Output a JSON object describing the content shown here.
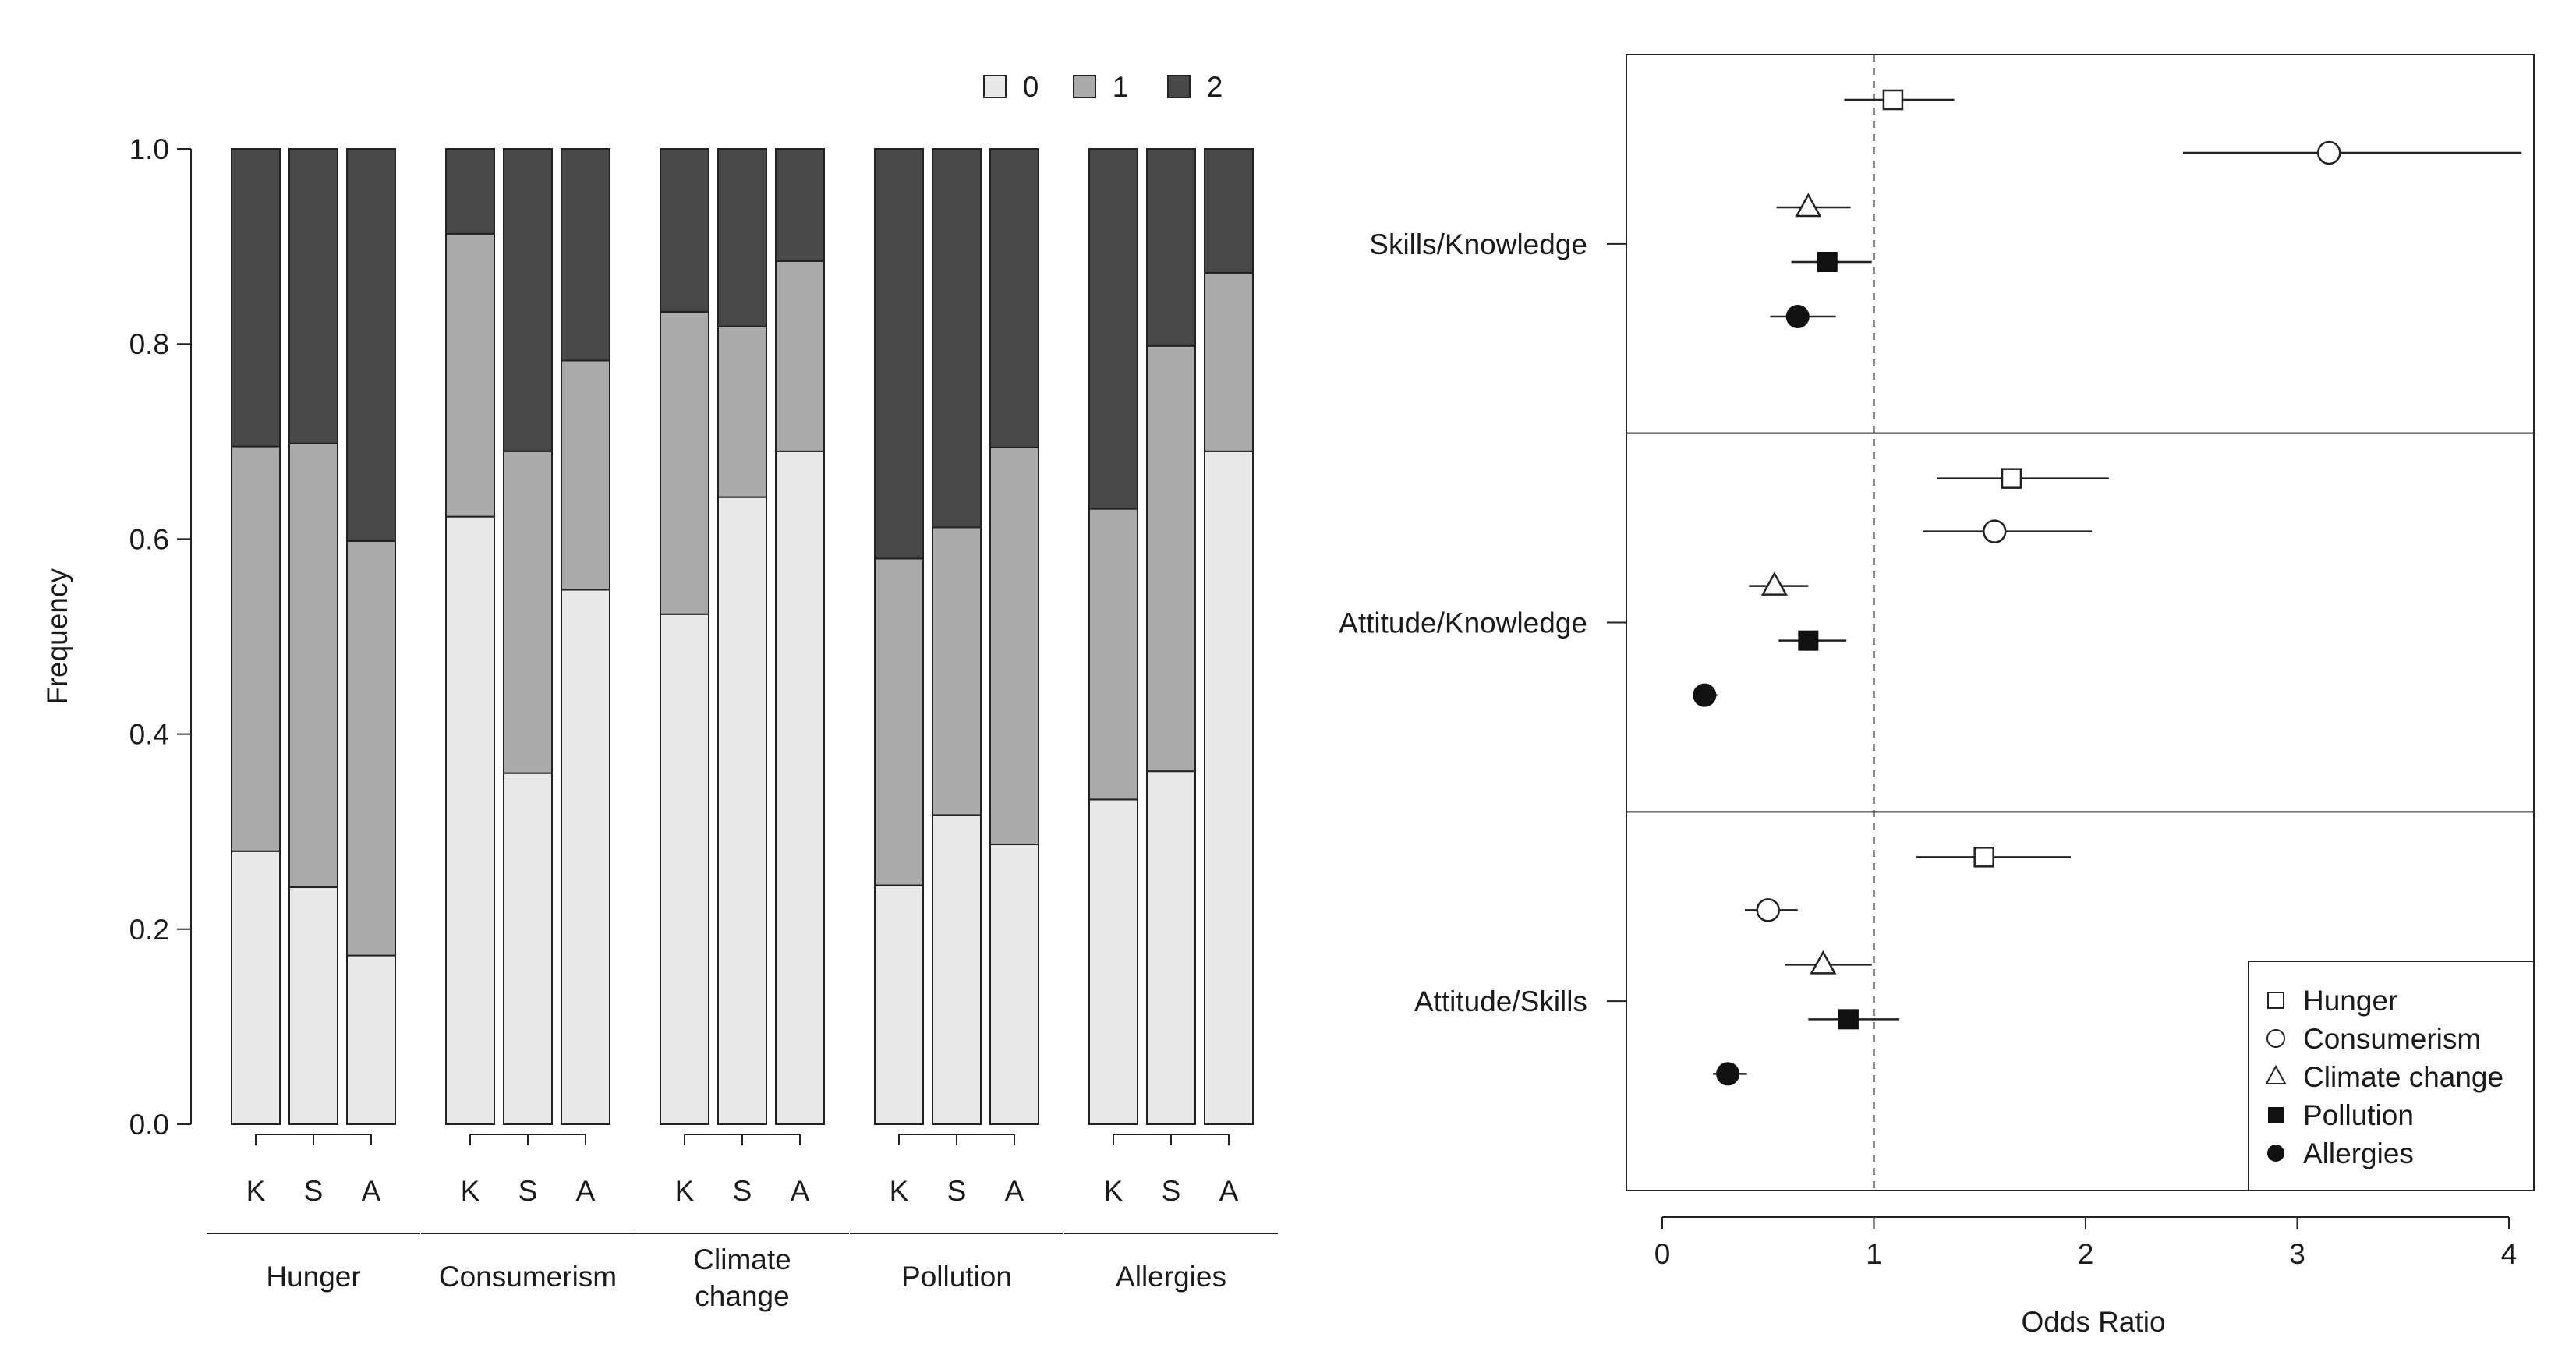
{
  "chart_data": [
    {
      "type": "bar",
      "stacked": true,
      "ylabel": "Frequency",
      "ylim": [
        0,
        1
      ],
      "yticks": [
        "0.0",
        "0.2",
        "0.4",
        "0.6",
        "0.8",
        "1.0"
      ],
      "legend": {
        "placement": "top-right",
        "entries": [
          "0",
          "1",
          "2"
        ]
      },
      "colors": {
        "0": "#e8e8e8",
        "1": "#ababab",
        "2": "#484848"
      },
      "groups": [
        {
          "name": "Hunger",
          "bars": [
            {
              "label": "K",
              "v0": 0.28,
              "v1": 0.415,
              "v2": 0.305
            },
            {
              "label": "S",
              "v0": 0.243,
              "v1": 0.455,
              "v2": 0.302
            },
            {
              "label": "A",
              "v0": 0.173,
              "v1": 0.425,
              "v2": 0.402
            }
          ]
        },
        {
          "name": "Consumerism",
          "bars": [
            {
              "label": "K",
              "v0": 0.623,
              "v1": 0.29,
              "v2": 0.087
            },
            {
              "label": "S",
              "v0": 0.36,
              "v1": 0.33,
              "v2": 0.31
            },
            {
              "label": "A",
              "v0": 0.548,
              "v1": 0.235,
              "v2": 0.217
            }
          ]
        },
        {
          "name": "Climate change",
          "bars": [
            {
              "label": "K",
              "v0": 0.523,
              "v1": 0.31,
              "v2": 0.167
            },
            {
              "label": "S",
              "v0": 0.643,
              "v1": 0.175,
              "v2": 0.182
            },
            {
              "label": "A",
              "v0": 0.69,
              "v1": 0.195,
              "v2": 0.115
            }
          ]
        },
        {
          "name": "Pollution",
          "bars": [
            {
              "label": "K",
              "v0": 0.245,
              "v1": 0.335,
              "v2": 0.42
            },
            {
              "label": "S",
              "v0": 0.317,
              "v1": 0.295,
              "v2": 0.388
            },
            {
              "label": "A",
              "v0": 0.287,
              "v1": 0.407,
              "v2": 0.306
            }
          ]
        },
        {
          "name": "Allergies",
          "bars": [
            {
              "label": "K",
              "v0": 0.333,
              "v1": 0.298,
              "v2": 0.369
            },
            {
              "label": "S",
              "v0": 0.362,
              "v1": 0.436,
              "v2": 0.202
            },
            {
              "label": "A",
              "v0": 0.69,
              "v1": 0.183,
              "v2": 0.127
            }
          ]
        }
      ]
    },
    {
      "type": "scatter",
      "subtype": "forest",
      "xlabel": "Odds Ratio",
      "xlim": [
        0,
        4
      ],
      "xticks": [
        0,
        1,
        2,
        3,
        4
      ],
      "reference_line": 1,
      "legend": {
        "placement": "bottom-right"
      },
      "series": [
        {
          "name": "Hunger",
          "marker": "open-square"
        },
        {
          "name": "Consumerism",
          "marker": "open-circle"
        },
        {
          "name": "Climate change",
          "marker": "open-triangle"
        },
        {
          "name": "Pollution",
          "marker": "filled-square"
        },
        {
          "name": "Allergies",
          "marker": "filled-circle"
        }
      ],
      "panels": [
        {
          "label": "Skills/Knowledge",
          "points": [
            {
              "series": "Hunger",
              "or": 1.09,
              "lo": 0.86,
              "hi": 1.38
            },
            {
              "series": "Consumerism",
              "or": 3.15,
              "lo": 2.46,
              "hi": 4.06
            },
            {
              "series": "Climate change",
              "or": 0.69,
              "lo": 0.54,
              "hi": 0.89
            },
            {
              "series": "Pollution",
              "or": 0.78,
              "lo": 0.61,
              "hi": 0.99
            },
            {
              "series": "Allergies",
              "or": 0.64,
              "lo": 0.51,
              "hi": 0.82
            }
          ]
        },
        {
          "label": "Attitude/Knowledge",
          "points": [
            {
              "series": "Hunger",
              "or": 1.65,
              "lo": 1.3,
              "hi": 2.11
            },
            {
              "series": "Consumerism",
              "or": 1.57,
              "lo": 1.23,
              "hi": 2.03
            },
            {
              "series": "Climate change",
              "or": 0.53,
              "lo": 0.41,
              "hi": 0.69
            },
            {
              "series": "Pollution",
              "or": 0.69,
              "lo": 0.55,
              "hi": 0.87
            },
            {
              "series": "Allergies",
              "or": 0.2,
              "lo": 0.16,
              "hi": 0.26
            }
          ]
        },
        {
          "label": "Attitude/Skills",
          "points": [
            {
              "series": "Hunger",
              "or": 1.52,
              "lo": 1.2,
              "hi": 1.93
            },
            {
              "series": "Consumerism",
              "or": 0.5,
              "lo": 0.39,
              "hi": 0.64
            },
            {
              "series": "Climate change",
              "or": 0.76,
              "lo": 0.58,
              "hi": 0.99
            },
            {
              "series": "Pollution",
              "or": 0.88,
              "lo": 0.69,
              "hi": 1.12
            },
            {
              "series": "Allergies",
              "or": 0.31,
              "lo": 0.24,
              "hi": 0.4
            }
          ]
        }
      ]
    }
  ]
}
